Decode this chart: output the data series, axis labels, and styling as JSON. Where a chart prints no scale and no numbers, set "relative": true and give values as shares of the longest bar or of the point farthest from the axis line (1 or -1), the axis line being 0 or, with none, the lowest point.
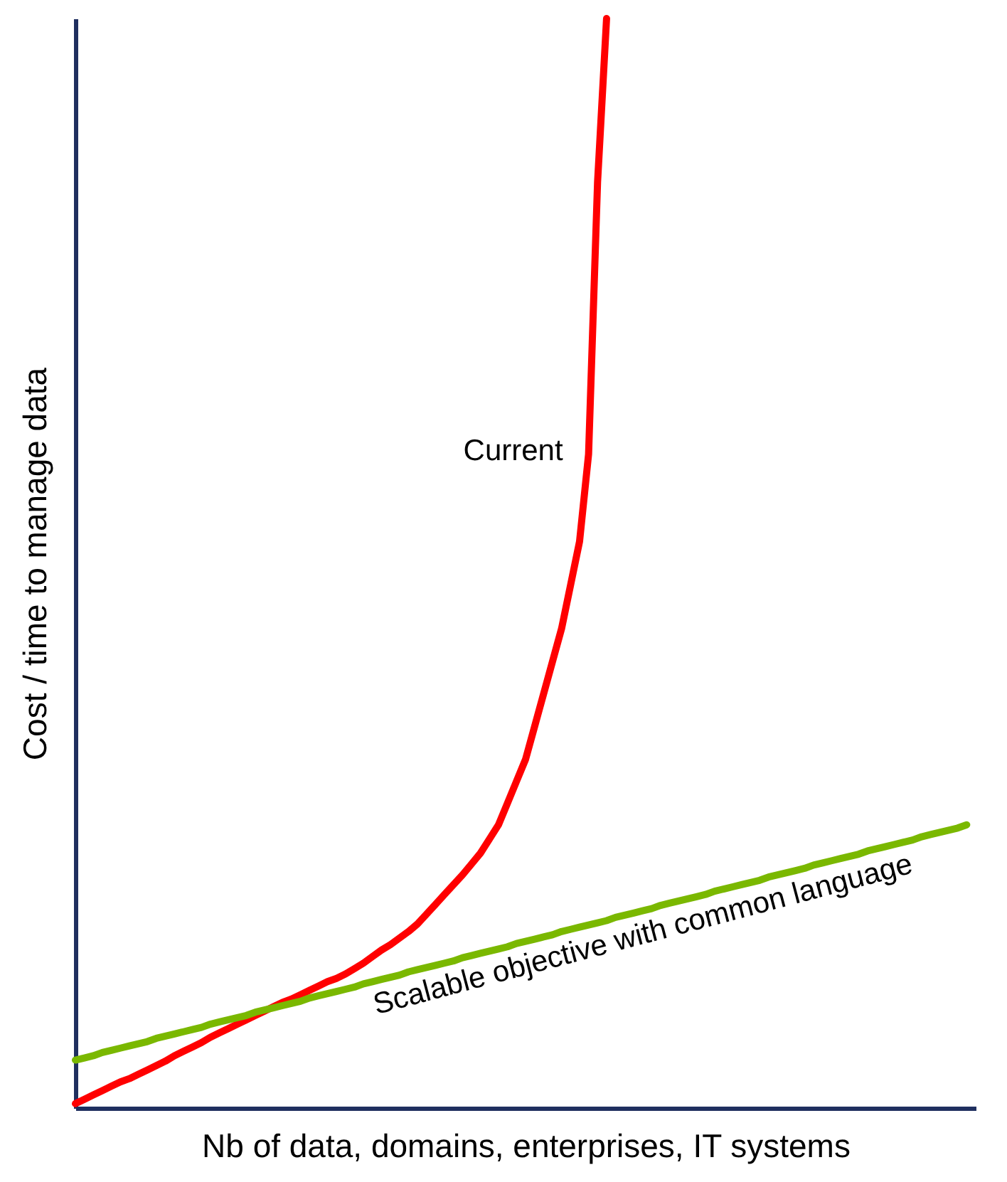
{
  "chart_data": {
    "type": "line",
    "relative": true,
    "xlabel": "Nb of data, domains, enterprises, IT systems",
    "ylabel": "Cost / time to manage data",
    "grid": false,
    "line_style": "solid",
    "marker": "none",
    "categories": [
      null,
      null,
      null,
      null,
      null,
      null,
      null,
      null,
      null,
      null,
      null,
      null,
      null,
      null,
      null,
      null,
      null,
      null,
      null,
      null,
      null,
      null,
      null,
      null,
      null,
      null,
      null,
      null,
      null,
      null,
      null,
      null,
      null,
      null,
      null,
      null,
      null,
      null,
      null,
      null,
      null,
      null,
      null,
      null,
      null,
      null,
      null,
      null,
      null,
      null,
      null,
      null,
      null,
      null,
      null,
      null,
      null,
      null,
      null,
      null,
      null,
      null,
      null,
      null,
      null,
      null,
      null,
      null,
      null,
      null,
      null,
      null,
      null,
      null,
      null,
      null,
      null,
      null,
      null,
      null,
      null,
      null,
      null,
      null,
      null,
      null,
      null,
      null,
      null,
      null,
      null,
      null,
      null,
      null,
      null,
      null,
      null,
      null,
      null,
      null,
      null
    ],
    "series": [
      {
        "name": "Current",
        "color": "#ff0000",
        "values": [
          0.004,
          0.008,
          0.012,
          0.016,
          0.02,
          0.024,
          0.027,
          0.031,
          0.035,
          0.039,
          0.043,
          0.048,
          0.052,
          0.056,
          0.06,
          0.065,
          0.069,
          0.073,
          0.077,
          0.081,
          0.085,
          0.089,
          0.093,
          0.097,
          0.1,
          0.104,
          0.108,
          0.112,
          0.116,
          0.119,
          0.123,
          0.128,
          0.133,
          0.139,
          0.145,
          0.15,
          0.156,
          0.162,
          0.169,
          0.178,
          0.187,
          0.196,
          0.205,
          0.214,
          0.224,
          0.234,
          0.247,
          0.26,
          0.28,
          0.3,
          0.32,
          0.35,
          0.38,
          0.41,
          0.44,
          0.48,
          0.52,
          0.6,
          0.85,
          1,
          null,
          null,
          null,
          null,
          null,
          null,
          null,
          null,
          null,
          null,
          null,
          null,
          null,
          null,
          null,
          null,
          null,
          null,
          null,
          null,
          null,
          null,
          null,
          null,
          null,
          null,
          null,
          null,
          null,
          null,
          null,
          null,
          null,
          null,
          null,
          null,
          null,
          null,
          null,
          null,
          null
        ]
      },
      {
        "name": "Scalable objective with common language",
        "color": "#7ab800",
        "values": [
          0.044,
          0.046,
          0.048,
          0.051,
          0.053,
          0.055,
          0.057,
          0.059,
          0.061,
          0.064,
          0.066,
          0.068,
          0.07,
          0.072,
          0.074,
          0.077,
          0.079,
          0.081,
          0.083,
          0.085,
          0.088,
          0.09,
          0.092,
          0.094,
          0.096,
          0.098,
          0.101,
          0.103,
          0.105,
          0.107,
          0.109,
          0.111,
          0.114,
          0.116,
          0.118,
          0.12,
          0.122,
          0.125,
          0.127,
          0.129,
          0.131,
          0.133,
          0.135,
          0.138,
          0.14,
          0.142,
          0.144,
          0.146,
          0.148,
          0.151,
          0.153,
          0.155,
          0.157,
          0.159,
          0.162,
          0.164,
          0.166,
          0.168,
          0.17,
          0.172,
          0.175,
          0.177,
          0.179,
          0.181,
          0.183,
          0.186,
          0.188,
          0.19,
          0.192,
          0.194,
          0.196,
          0.199,
          0.201,
          0.203,
          0.205,
          0.207,
          0.209,
          0.212,
          0.214,
          0.216,
          0.218,
          0.22,
          0.223,
          0.225,
          0.227,
          0.229,
          0.231,
          0.233,
          0.236,
          0.238,
          0.24,
          0.242,
          0.244,
          0.246,
          0.249,
          0.251,
          0.253,
          0.255,
          0.257,
          0.26,
          null
        ]
      }
    ]
  }
}
